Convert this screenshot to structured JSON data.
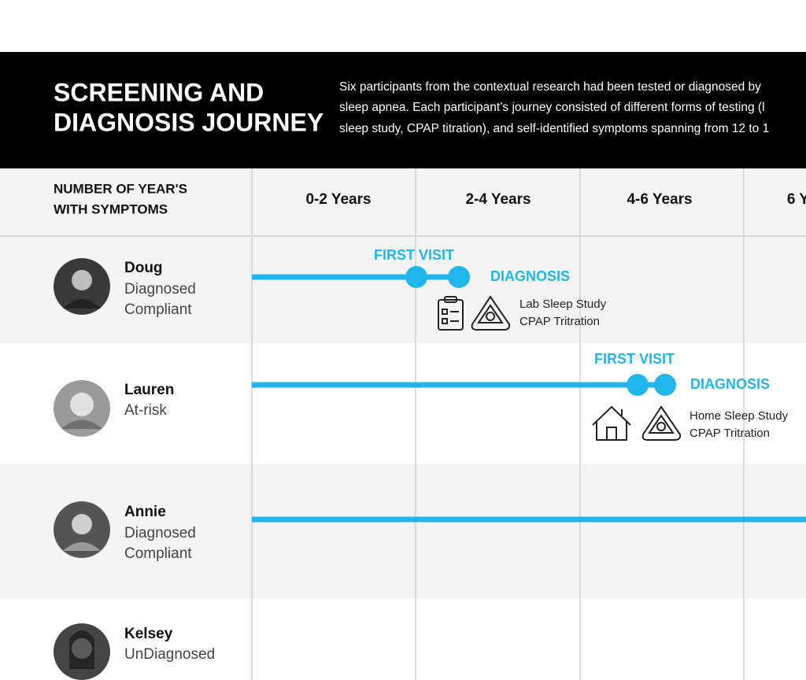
{
  "header": {
    "title": [
      "SCREENING AND",
      "DIAGNOSIS JOURNEY"
    ],
    "description": [
      "Six participants from the contextual research had been tested or diagnosed by",
      "sleep apnea. Each participant’s journey consisted of different forms of testing (l",
      "sleep study, CPAP titration), and self-identified symptoms spanning from 12 to 1"
    ]
  },
  "table": {
    "row_header": [
      "NUMBER OF YEAR'S",
      "WITH SYMPTOMS"
    ],
    "columns": [
      "0-2 Years",
      "2-4 Years",
      "4-6 Years",
      "6 Y"
    ],
    "rows": [
      {
        "name": "Doug",
        "status": [
          "Diagnosed",
          "Compliant"
        ],
        "first_visit": "FIRST VISIT",
        "diagnosis": "DIAGNOSIS",
        "tests": [
          "Lab Sleep Study",
          "CPAP Tritration"
        ]
      },
      {
        "name": "Lauren",
        "status": [
          "At-risk"
        ],
        "first_visit": "FIRST VISIT",
        "diagnosis": "DIAGNOSIS",
        "tests": [
          "Home Sleep Study",
          "CPAP Tritration"
        ]
      },
      {
        "name": "Annie",
        "status": [
          "Diagnosed",
          "Compliant"
        ]
      },
      {
        "name": "Kelsey",
        "status": [
          "UnDiagnosed"
        ]
      }
    ]
  }
}
